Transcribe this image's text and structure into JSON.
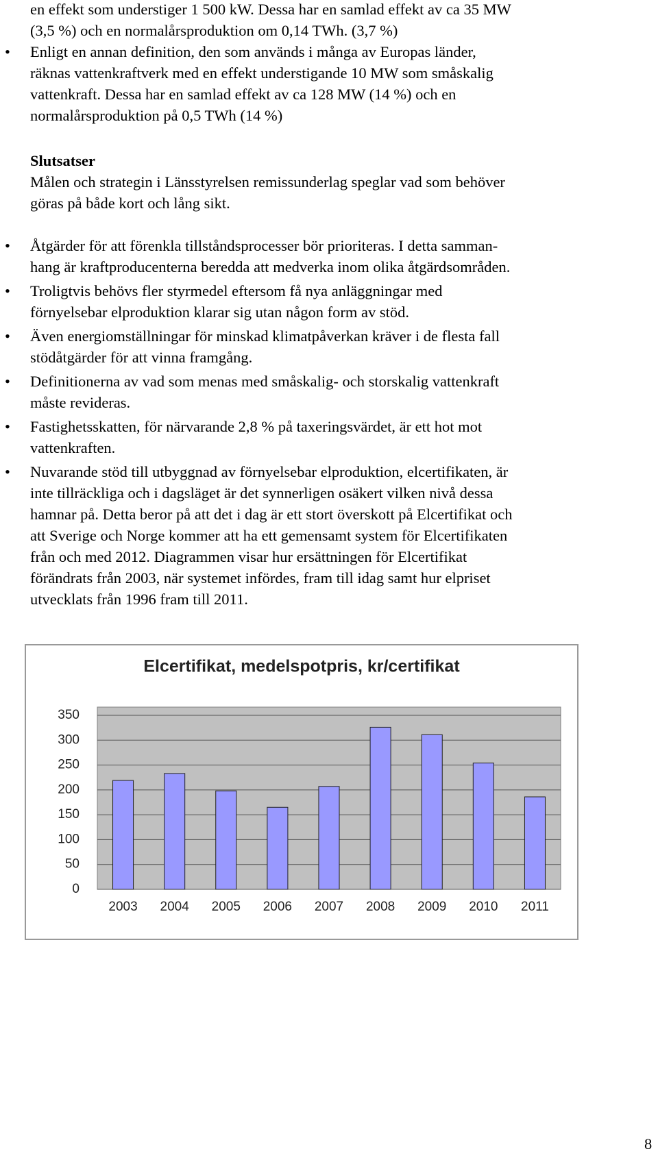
{
  "intro_lines": [
    "en effekt som understiger 1 500 kW. Dessa har en samlad effekt av ca 35 MW",
    "(3,5 %) och en normalårsproduktion om 0,14 TWh. (3,7 %)"
  ],
  "bullets_1": [
    [
      "Enligt en annan definition, den som används i många av Europas länder,",
      "räknas vattenkraftverk med en effekt understigande 10 MW som småskalig",
      "vattenkraft. Dessa har en samlad effekt av ca 128 MW (14 %) och en",
      "normalårsproduktion på 0,5 TWh (14 %)"
    ]
  ],
  "heading": "Slutsatser",
  "conclusion_lines": [
    "Målen och strategin i Länsstyrelsen remissunderlag speglar vad som behöver",
    "göras på både kort och lång sikt."
  ],
  "bullets_2": [
    [
      "Åtgärder för att förenkla tillståndsprocesser bör prioriteras. I detta samman-",
      "hang är kraftproducenterna beredda att medverka inom olika åtgärdsområden."
    ],
    [
      "Troligtvis behövs fler styrmedel eftersom få nya anläggningar med",
      "förnyelsebar elproduktion klarar sig utan någon form av stöd."
    ],
    [
      "Även energiomställningar för minskad klimatpåverkan kräver i de flesta fall",
      "stödåtgärder för att vinna framgång."
    ],
    [
      "Definitionerna av vad som menas med småskalig- och storskalig vattenkraft",
      "måste revideras."
    ],
    [
      "Fastighetsskatten, för närvarande 2,8 % på taxeringsvärdet, är ett hot mot",
      "vattenkraften."
    ],
    [
      "Nuvarande stöd till utbyggnad av förnyelsebar elproduktion, elcertifikaten, är",
      "inte tillräckliga och i dagsläget är det synnerligen osäkert vilken nivå dessa",
      "hamnar på. Detta beror på att det i dag är ett stort överskott på Elcertifikat och",
      "att Sverige och Norge kommer att ha ett gemensamt system för Elcertifikaten",
      "från och med 2012. Diagrammen visar hur ersättningen för Elcertifikat",
      "förändrats från 2003, när systemet infördes, fram till idag samt hur elpriset",
      "utvecklats från 1996 fram till 2011."
    ]
  ],
  "chart_data": {
    "type": "bar",
    "title": "Elcertifikat, medelspotpris, kr/certifikat",
    "categories": [
      "2003",
      "2004",
      "2005",
      "2006",
      "2007",
      "2008",
      "2009",
      "2010",
      "2011"
    ],
    "values": [
      219,
      233,
      198,
      165,
      207,
      326,
      311,
      254,
      186
    ],
    "color": "#9999ff",
    "ylim": [
      0,
      350
    ],
    "yticks": [
      0,
      50,
      100,
      150,
      200,
      250,
      300,
      350
    ],
    "grid": true
  },
  "page_number": "8"
}
